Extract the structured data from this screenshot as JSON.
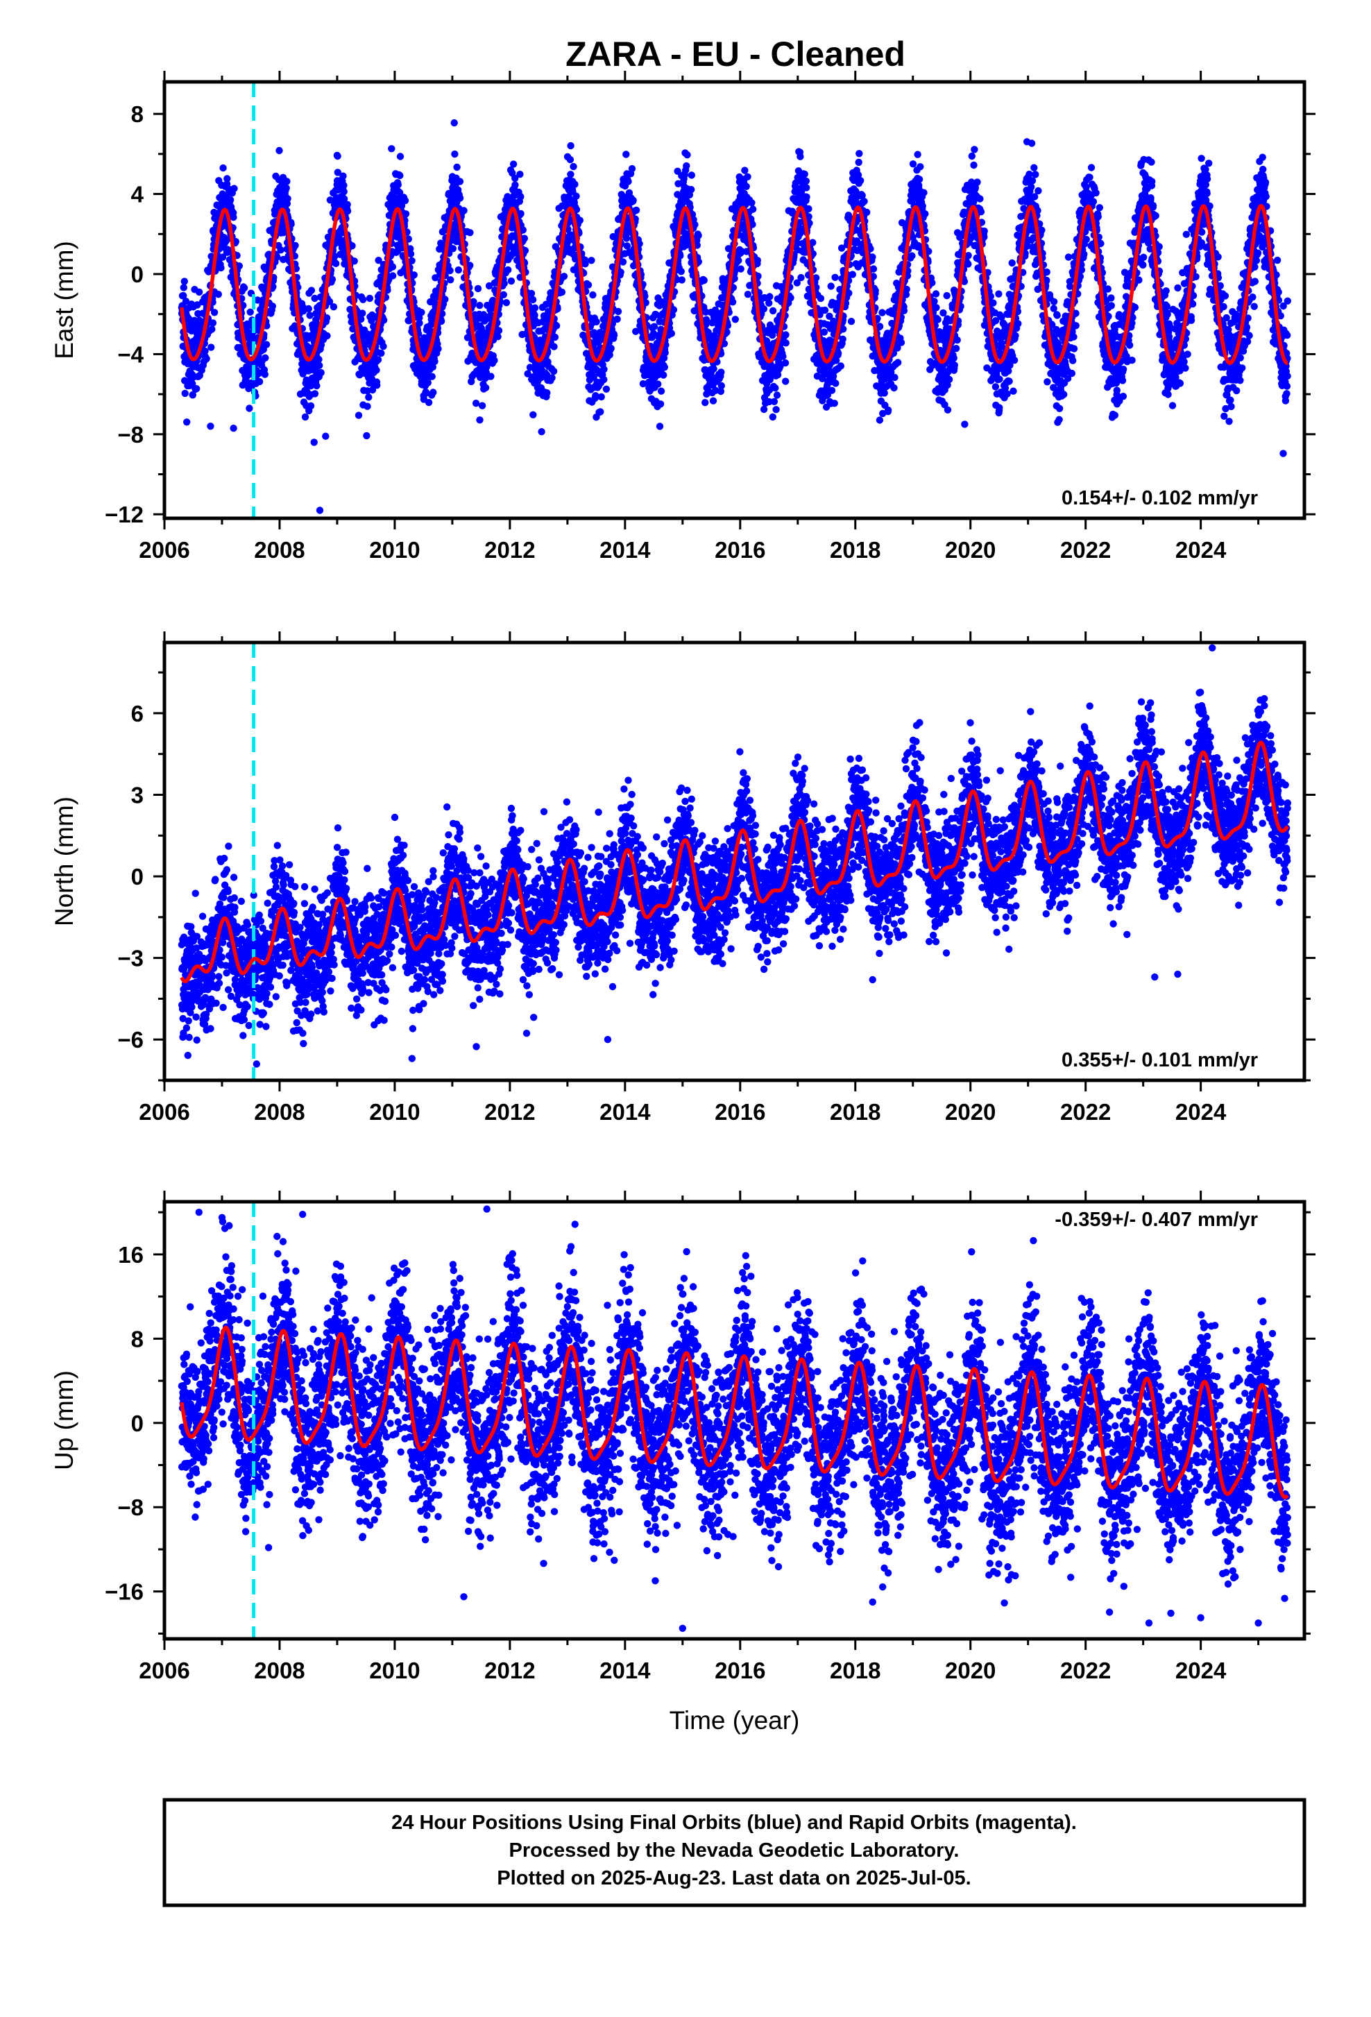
{
  "title": "ZARA  - EU - Cleaned",
  "caption": {
    "line1": "24 Hour Positions Using Final Orbits (blue) and Rapid Orbits (magenta).",
    "line2": "Processed by the Nevada Geodetic Laboratory.",
    "line3": "Plotted on 2025-Aug-23. Last data on 2025-Jul-05."
  },
  "colors": {
    "data": "#0000ff",
    "model": "#ff0000",
    "equipment_change": "#00e5ee",
    "frame": "#000000"
  },
  "chart_data": [
    {
      "type": "scatter",
      "component": "East",
      "ylabel": "East (mm)",
      "xlabel": "",
      "xlim": [
        2006.0,
        2025.8
      ],
      "ylim": [
        -12.2,
        9.6
      ],
      "xticks": [
        "2006",
        "2008",
        "2010",
        "2012",
        "2014",
        "2016",
        "2018",
        "2020",
        "2022",
        "2024"
      ],
      "yticks": [
        "8",
        "4",
        "0",
        "-4",
        "-8",
        "-12"
      ],
      "rate_label": "0.154+/- 0.102 mm/yr",
      "equipment_change_year": 2007.55,
      "data_span": [
        2006.3,
        2025.51
      ],
      "series": [
        {
          "name": "Final Orbits (blue)",
          "kind": "daily positions"
        },
        {
          "name": "model",
          "kind": "fitted line"
        }
      ],
      "model_params": {
        "offset": -0.9,
        "annual_amp_start": 3.7,
        "annual_amp_end": 3.9,
        "annual_phase": 1.35,
        "semi_annual_amp": 0.45,
        "semi_annual_phase": 0.6,
        "noise_sd": 1.2
      },
      "outliers": [
        [
          2006.8,
          -7.6
        ],
        [
          2007.2,
          -7.7
        ],
        [
          2008.6,
          -8.4
        ],
        [
          2008.7,
          -11.8
        ],
        [
          2008.8,
          -8.1
        ],
        [
          2019.9,
          -7.5
        ]
      ],
      "grid": false,
      "legend": "none"
    },
    {
      "type": "scatter",
      "component": "North",
      "ylabel": "North (mm)",
      "xlabel": "",
      "xlim": [
        2006.0,
        2025.8
      ],
      "ylim": [
        -7.5,
        8.6
      ],
      "xticks": [
        "2006",
        "2008",
        "2010",
        "2012",
        "2014",
        "2016",
        "2018",
        "2020",
        "2022",
        "2024"
      ],
      "yticks": [
        "6",
        "3",
        "0",
        "-3",
        "-6"
      ],
      "rate_label": "0.355+/- 0.101 mm/yr",
      "equipment_change_year": 2007.55,
      "data_span": [
        2006.3,
        2025.51
      ],
      "series": [
        {
          "name": "Final Orbits (blue)",
          "kind": "daily positions"
        },
        {
          "name": "model",
          "kind": "fitted line"
        }
      ],
      "model_params": {
        "offset_start": -3.1,
        "offset_end": 3.0,
        "annual_amp_start": 0.8,
        "annual_amp_end": 1.6,
        "annual_phase": 1.4,
        "semi_annual_amp": 0.5,
        "semi_annual_phase": 0.9,
        "noise_sd": 1.05
      },
      "outliers": [
        [
          2007.6,
          -6.9
        ],
        [
          2010.3,
          -6.7
        ],
        [
          2013.7,
          -6.0
        ],
        [
          2018.3,
          -3.8
        ],
        [
          2023.2,
          -3.7
        ],
        [
          2023.6,
          -3.6
        ],
        [
          2024.2,
          8.4
        ]
      ],
      "grid": false,
      "legend": "none"
    },
    {
      "type": "scatter",
      "component": "Up",
      "ylabel": "Up (mm)",
      "xlabel": "Time (year)",
      "xlim": [
        2006.0,
        2025.8
      ],
      "ylim": [
        -20.5,
        21.0
      ],
      "xticks": [
        "2006",
        "2008",
        "2010",
        "2012",
        "2014",
        "2016",
        "2018",
        "2020",
        "2022",
        "2024"
      ],
      "yticks": [
        "16",
        "8",
        "0",
        "-8",
        "-16"
      ],
      "rate_label": "-0.359+/- 0.407 mm/yr",
      "equipment_change_year": 2007.55,
      "data_span": [
        2006.3,
        2025.51
      ],
      "series": [
        {
          "name": "Final Orbits (blue)",
          "kind": "daily positions"
        },
        {
          "name": "model",
          "kind": "fitted line"
        }
      ],
      "model_params": {
        "offset_start": 3.2,
        "offset_end": -2.6,
        "annual_amp_start": 5.0,
        "annual_amp_end": 5.0,
        "annual_phase": 1.3,
        "semi_annual_amp": 1.2,
        "semi_annual_phase": 0.4,
        "noise_sd": 4.0
      },
      "outliers": [
        [
          2006.6,
          20.0
        ],
        [
          2007.0,
          19.5
        ],
        [
          2008.4,
          19.8
        ],
        [
          2011.6,
          20.3
        ],
        [
          2011.2,
          -16.5
        ],
        [
          2015.0,
          -19.5
        ],
        [
          2018.3,
          -17.0
        ],
        [
          2023.1,
          -19.0
        ],
        [
          2024.0,
          -18.5
        ],
        [
          2025.0,
          -19.0
        ]
      ],
      "grid": false,
      "legend": "none"
    }
  ]
}
